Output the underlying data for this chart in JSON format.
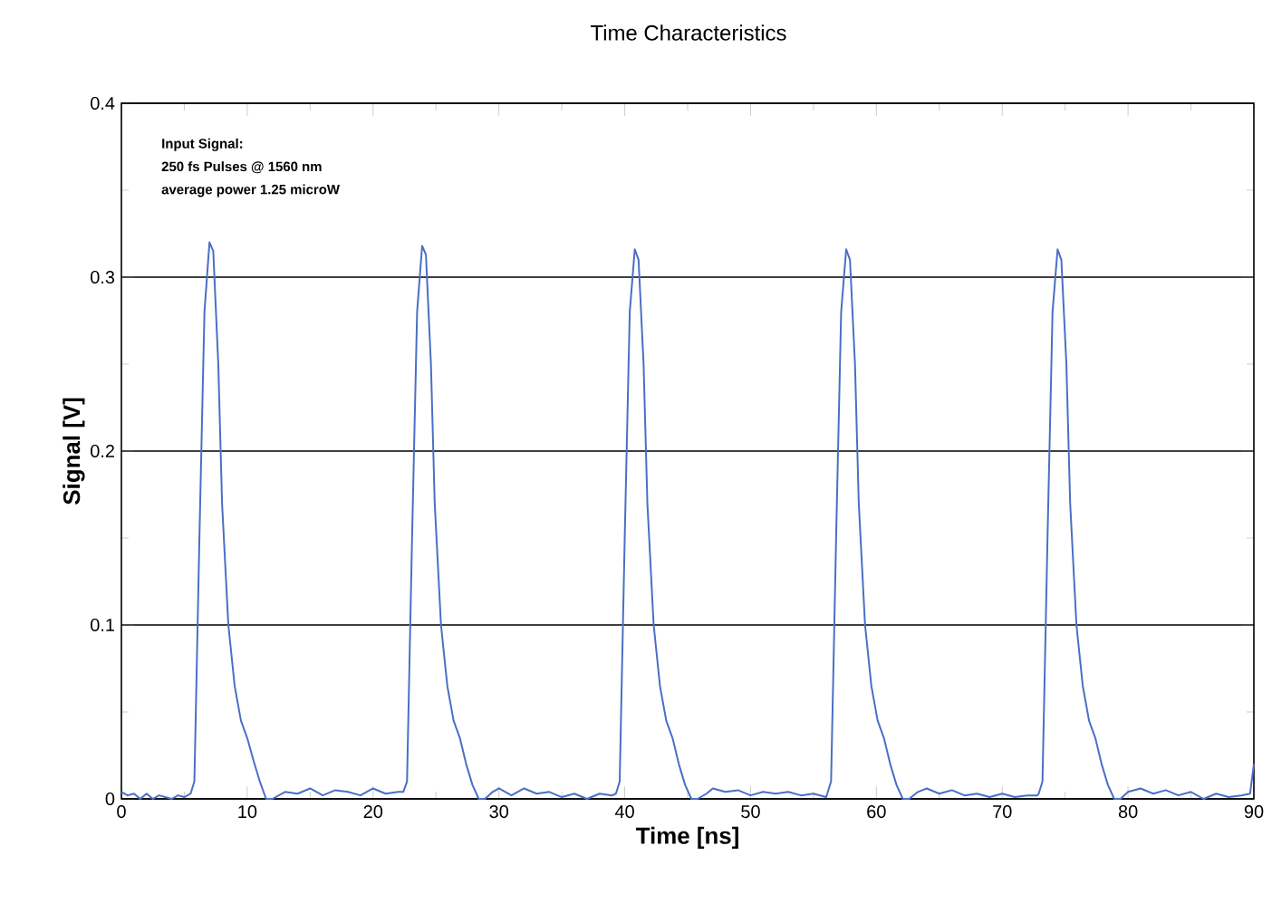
{
  "chart_data": {
    "type": "line",
    "title": "Time Characteristics",
    "xlabel": "Time [ns]",
    "ylabel": "Signal [V]",
    "annotations": [
      "Input Signal:",
      "250 fs Pulses @ 1560 nm",
      "average power 1.25 microW"
    ],
    "color": "#4a6fc4",
    "grid": "y",
    "xlim": [
      0,
      90
    ],
    "ylim": [
      0,
      0.4
    ],
    "xticks": [
      0,
      10,
      20,
      30,
      40,
      50,
      60,
      70,
      80,
      90
    ],
    "yticks": [
      0,
      0.1,
      0.2,
      0.3,
      0.4
    ],
    "x": [
      0,
      0.5,
      1.0,
      1.5,
      2,
      2.5,
      3,
      3.5,
      4,
      4.5,
      5,
      5.5,
      5.8,
      6.2,
      6.6,
      7.0,
      7.3,
      7.7,
      8.0,
      8.5,
      9.0,
      9.5,
      10.0,
      10.5,
      11.0,
      11.5,
      12.0,
      13,
      14,
      15,
      16,
      17,
      18,
      19,
      20,
      21,
      22,
      22.4,
      22.7,
      23.1,
      23.5,
      23.9,
      24.2,
      24.6,
      24.9,
      25.4,
      25.9,
      26.4,
      26.9,
      27.4,
      27.9,
      28.4,
      28.9,
      29.5,
      30,
      31,
      32,
      33,
      34,
      35,
      36,
      37,
      38,
      39,
      39.3,
      39.6,
      40.0,
      40.4,
      40.8,
      41.1,
      41.5,
      41.8,
      42.3,
      42.8,
      43.3,
      43.8,
      44.3,
      44.8,
      45.3,
      45.8,
      46.5,
      47,
      48,
      49,
      50,
      51,
      52,
      53,
      54,
      55,
      56,
      56.1,
      56.4,
      56.8,
      57.2,
      57.6,
      57.9,
      58.3,
      58.6,
      59.1,
      59.6,
      60.1,
      60.6,
      61.1,
      61.6,
      62.1,
      62.6,
      63.3,
      64,
      65,
      66,
      67,
      68,
      69,
      70,
      71,
      72,
      72.8,
      72.9,
      73.2,
      73.6,
      74.0,
      74.4,
      74.7,
      75.1,
      75.4,
      75.9,
      76.4,
      76.9,
      77.4,
      77.9,
      78.4,
      78.9,
      79.4,
      80,
      81,
      82,
      83,
      84,
      85,
      86,
      87,
      88,
      89,
      89.7,
      90
    ],
    "values": [
      0.004,
      0.002,
      0.003,
      0.0,
      0.003,
      0.0,
      0.002,
      0.001,
      0.0,
      0.002,
      0.001,
      0.003,
      0.01,
      0.15,
      0.28,
      0.32,
      0.315,
      0.25,
      0.17,
      0.1,
      0.065,
      0.045,
      0.035,
      0.022,
      0.01,
      0.0,
      0.0,
      0.004,
      0.003,
      0.006,
      0.002,
      0.005,
      0.004,
      0.002,
      0.006,
      0.003,
      0.004,
      0.004,
      0.01,
      0.15,
      0.28,
      0.318,
      0.313,
      0.25,
      0.17,
      0.1,
      0.065,
      0.045,
      0.035,
      0.02,
      0.008,
      0.0,
      0.0,
      0.004,
      0.006,
      0.002,
      0.006,
      0.003,
      0.004,
      0.001,
      0.003,
      0.0,
      0.003,
      0.002,
      0.003,
      0.01,
      0.15,
      0.28,
      0.316,
      0.31,
      0.25,
      0.17,
      0.1,
      0.065,
      0.045,
      0.035,
      0.02,
      0.008,
      0.0,
      0.0,
      0.003,
      0.006,
      0.004,
      0.005,
      0.002,
      0.004,
      0.003,
      0.004,
      0.002,
      0.003,
      0.001,
      0.003,
      0.01,
      0.15,
      0.28,
      0.316,
      0.31,
      0.25,
      0.17,
      0.1,
      0.065,
      0.045,
      0.035,
      0.02,
      0.008,
      0.0,
      0.0,
      0.004,
      0.006,
      0.003,
      0.005,
      0.002,
      0.003,
      0.001,
      0.003,
      0.001,
      0.002,
      0.002,
      0.003,
      0.01,
      0.15,
      0.28,
      0.316,
      0.31,
      0.25,
      0.17,
      0.1,
      0.065,
      0.045,
      0.035,
      0.02,
      0.008,
      0.0,
      0.0,
      0.004,
      0.006,
      0.003,
      0.005,
      0.002,
      0.004,
      0.0,
      0.003,
      0.001,
      0.002,
      0.003,
      0.02
    ]
  }
}
